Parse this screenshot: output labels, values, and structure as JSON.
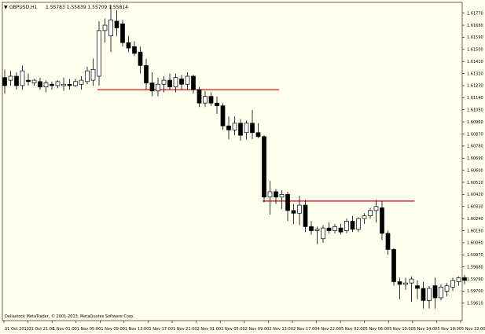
{
  "header": {
    "arrow": "▼",
    "symbol": "GBPUSD,H1",
    "ohlc": "1.55783 1.55839 1.55709 1.55814"
  },
  "footer": {
    "copyright": "Dellastock MetaTrader, © 2001-2013, MetaQuotes Software Corp."
  },
  "colors": {
    "background": "#fffff0",
    "candle": "#000000",
    "resistance": "#cc0000"
  },
  "chart_data": {
    "type": "candlestick",
    "title": "GBPUSD,H1",
    "xlabel": "",
    "ylabel": "",
    "ylim": [
      1.5948,
      1.6185
    ],
    "y_ticks": [
      "1.61770",
      "1.61680",
      "1.61590",
      "1.61500",
      "1.61410",
      "1.61320",
      "1.61230",
      "1.61140",
      "1.61050",
      "1.60960",
      "1.60870",
      "1.60780",
      "1.60690",
      "1.60600",
      "1.60510",
      "1.60420",
      "1.60330",
      "1.60240",
      "1.60150",
      "1.60060",
      "1.59970",
      "1.59880",
      "1.59790",
      "1.59700",
      "1.59610"
    ],
    "x_ticks": [
      "31 Oct 2012",
      "31 Oct 21:00",
      "1 Nov 01:00",
      "1 Nov 05:00",
      "1 Nov 09:00",
      "1 Nov 13:00",
      "1 Nov 17:00",
      "1 Nov 21:00",
      "2 Nov 01:00",
      "2 Nov 05:00",
      "2 Nov 09:00",
      "2 Nov 13:00",
      "2 Nov 17:00",
      "4 Nov 22:00",
      "5 Nov 02:00",
      "5 Nov 06:00",
      "5 Nov 10:00",
      "5 Nov 14:00",
      "5 Nov 18:00",
      "5 Nov 22:00"
    ],
    "candles": [
      {
        "o": 1.6129,
        "h": 1.6135,
        "l": 1.6117,
        "c": 1.6123
      },
      {
        "o": 1.6127,
        "h": 1.6134,
        "l": 1.6123,
        "c": 1.613
      },
      {
        "o": 1.613,
        "h": 1.6133,
        "l": 1.612,
        "c": 1.6123
      },
      {
        "o": 1.6123,
        "h": 1.6138,
        "l": 1.612,
        "c": 1.6134
      },
      {
        "o": 1.6127,
        "h": 1.6132,
        "l": 1.6123,
        "c": 1.6126
      },
      {
        "o": 1.6125,
        "h": 1.6128,
        "l": 1.6123,
        "c": 1.6127
      },
      {
        "o": 1.6126,
        "h": 1.6129,
        "l": 1.612,
        "c": 1.6122
      },
      {
        "o": 1.6122,
        "h": 1.6127,
        "l": 1.6118,
        "c": 1.6125
      },
      {
        "o": 1.6124,
        "h": 1.6126,
        "l": 1.612,
        "c": 1.6123
      },
      {
        "o": 1.6123,
        "h": 1.6127,
        "l": 1.6121,
        "c": 1.6126
      },
      {
        "o": 1.6123,
        "h": 1.6129,
        "l": 1.6119,
        "c": 1.6124
      },
      {
        "o": 1.6124,
        "h": 1.6128,
        "l": 1.612,
        "c": 1.6123
      },
      {
        "o": 1.6123,
        "h": 1.6128,
        "l": 1.6122,
        "c": 1.6126
      },
      {
        "o": 1.6124,
        "h": 1.613,
        "l": 1.612,
        "c": 1.6127
      },
      {
        "o": 1.6126,
        "h": 1.6137,
        "l": 1.6124,
        "c": 1.6134
      },
      {
        "o": 1.6127,
        "h": 1.6143,
        "l": 1.6123,
        "c": 1.6135
      },
      {
        "o": 1.613,
        "h": 1.6171,
        "l": 1.6123,
        "c": 1.6164
      },
      {
        "o": 1.6164,
        "h": 1.6173,
        "l": 1.6155,
        "c": 1.6168
      },
      {
        "o": 1.616,
        "h": 1.6183,
        "l": 1.6148,
        "c": 1.6172
      },
      {
        "o": 1.6171,
        "h": 1.6179,
        "l": 1.616,
        "c": 1.6166
      },
      {
        "o": 1.6169,
        "h": 1.6172,
        "l": 1.6152,
        "c": 1.6155
      },
      {
        "o": 1.6155,
        "h": 1.616,
        "l": 1.6148,
        "c": 1.6151
      },
      {
        "o": 1.6152,
        "h": 1.6156,
        "l": 1.6145,
        "c": 1.6147
      },
      {
        "o": 1.6148,
        "h": 1.6152,
        "l": 1.6132,
        "c": 1.6138
      },
      {
        "o": 1.6138,
        "h": 1.6143,
        "l": 1.612,
        "c": 1.6125
      },
      {
        "o": 1.6125,
        "h": 1.6133,
        "l": 1.6115,
        "c": 1.6119
      },
      {
        "o": 1.6119,
        "h": 1.6129,
        "l": 1.6115,
        "c": 1.6124
      },
      {
        "o": 1.6124,
        "h": 1.613,
        "l": 1.6118,
        "c": 1.6127
      },
      {
        "o": 1.6127,
        "h": 1.6132,
        "l": 1.612,
        "c": 1.6122
      },
      {
        "o": 1.6122,
        "h": 1.6132,
        "l": 1.6118,
        "c": 1.6129
      },
      {
        "o": 1.6128,
        "h": 1.6131,
        "l": 1.612,
        "c": 1.6124
      },
      {
        "o": 1.6124,
        "h": 1.6133,
        "l": 1.612,
        "c": 1.613
      },
      {
        "o": 1.613,
        "h": 1.6131,
        "l": 1.6117,
        "c": 1.612
      },
      {
        "o": 1.612,
        "h": 1.6122,
        "l": 1.6107,
        "c": 1.611
      },
      {
        "o": 1.611,
        "h": 1.6119,
        "l": 1.6107,
        "c": 1.6115
      },
      {
        "o": 1.6115,
        "h": 1.6118,
        "l": 1.6108,
        "c": 1.611
      },
      {
        "o": 1.611,
        "h": 1.6115,
        "l": 1.6102,
        "c": 1.6108
      },
      {
        "o": 1.6108,
        "h": 1.611,
        "l": 1.609,
        "c": 1.6093
      },
      {
        "o": 1.6093,
        "h": 1.61,
        "l": 1.6083,
        "c": 1.609
      },
      {
        "o": 1.609,
        "h": 1.61,
        "l": 1.6086,
        "c": 1.6095
      },
      {
        "o": 1.6095,
        "h": 1.6098,
        "l": 1.6082,
        "c": 1.6086
      },
      {
        "o": 1.6088,
        "h": 1.6097,
        "l": 1.6083,
        "c": 1.6095
      },
      {
        "o": 1.6095,
        "h": 1.6105,
        "l": 1.6083,
        "c": 1.6088
      },
      {
        "o": 1.6088,
        "h": 1.6095,
        "l": 1.6084,
        "c": 1.6085
      },
      {
        "o": 1.6085,
        "h": 1.6086,
        "l": 1.6036,
        "c": 1.604
      },
      {
        "o": 1.604,
        "h": 1.6052,
        "l": 1.6027,
        "c": 1.6044
      },
      {
        "o": 1.6044,
        "h": 1.6046,
        "l": 1.6035,
        "c": 1.604
      },
      {
        "o": 1.604,
        "h": 1.6045,
        "l": 1.6031,
        "c": 1.6042
      },
      {
        "o": 1.6042,
        "h": 1.6044,
        "l": 1.6022,
        "c": 1.603
      },
      {
        "o": 1.603,
        "h": 1.6035,
        "l": 1.602,
        "c": 1.6028
      },
      {
        "o": 1.6028,
        "h": 1.6041,
        "l": 1.6019,
        "c": 1.6034
      },
      {
        "o": 1.6034,
        "h": 1.6038,
        "l": 1.6014,
        "c": 1.6018
      },
      {
        "o": 1.6018,
        "h": 1.6022,
        "l": 1.6012,
        "c": 1.6015
      },
      {
        "o": 1.6015,
        "h": 1.6018,
        "l": 1.6005,
        "c": 1.6016
      },
      {
        "o": 1.6009,
        "h": 1.6019,
        "l": 1.6006,
        "c": 1.6017
      },
      {
        "o": 1.6017,
        "h": 1.6021,
        "l": 1.6013,
        "c": 1.6015
      },
      {
        "o": 1.6015,
        "h": 1.602,
        "l": 1.6013,
        "c": 1.6018
      },
      {
        "o": 1.6017,
        "h": 1.602,
        "l": 1.6012,
        "c": 1.6014
      },
      {
        "o": 1.6015,
        "h": 1.6024,
        "l": 1.6013,
        "c": 1.6022
      },
      {
        "o": 1.6022,
        "h": 1.6026,
        "l": 1.6014,
        "c": 1.6016
      },
      {
        "o": 1.6016,
        "h": 1.6025,
        "l": 1.6014,
        "c": 1.6024
      },
      {
        "o": 1.6024,
        "h": 1.6028,
        "l": 1.602,
        "c": 1.6026
      },
      {
        "o": 1.6026,
        "h": 1.6032,
        "l": 1.6024,
        "c": 1.603
      },
      {
        "o": 1.603,
        "h": 1.6038,
        "l": 1.6021,
        "c": 1.6033
      },
      {
        "o": 1.6032,
        "h": 1.6037,
        "l": 1.6008,
        "c": 1.6013
      },
      {
        "o": 1.6013,
        "h": 1.6015,
        "l": 1.5997,
        "c": 1.6001
      },
      {
        "o": 1.6001,
        "h": 1.6002,
        "l": 1.5974,
        "c": 1.5977
      },
      {
        "o": 1.5977,
        "h": 1.598,
        "l": 1.5964,
        "c": 1.5975
      },
      {
        "o": 1.5975,
        "h": 1.598,
        "l": 1.5971,
        "c": 1.5976
      },
      {
        "o": 1.5976,
        "h": 1.5981,
        "l": 1.5962,
        "c": 1.5979
      },
      {
        "o": 1.5974,
        "h": 1.5978,
        "l": 1.5964,
        "c": 1.5972
      },
      {
        "o": 1.5972,
        "h": 1.5977,
        "l": 1.5957,
        "c": 1.5963
      },
      {
        "o": 1.5963,
        "h": 1.5974,
        "l": 1.5957,
        "c": 1.5972
      },
      {
        "o": 1.5974,
        "h": 1.598,
        "l": 1.5957,
        "c": 1.5965
      },
      {
        "o": 1.5965,
        "h": 1.5975,
        "l": 1.5963,
        "c": 1.5973
      },
      {
        "o": 1.597,
        "h": 1.5976,
        "l": 1.5966,
        "c": 1.5974
      },
      {
        "o": 1.5973,
        "h": 1.598,
        "l": 1.597,
        "c": 1.5978
      },
      {
        "o": 1.5977,
        "h": 1.5981,
        "l": 1.5974,
        "c": 1.598
      },
      {
        "o": 1.598,
        "h": 1.5982,
        "l": 1.5975,
        "c": 1.5978
      }
    ],
    "horizontal_lines": [
      {
        "price": 1.612,
        "from_index": 16,
        "to_index": 46,
        "label": "resistance-upper"
      },
      {
        "price": 1.6037,
        "from_index": 44,
        "to_index": 69,
        "label": "resistance-lower"
      }
    ]
  }
}
